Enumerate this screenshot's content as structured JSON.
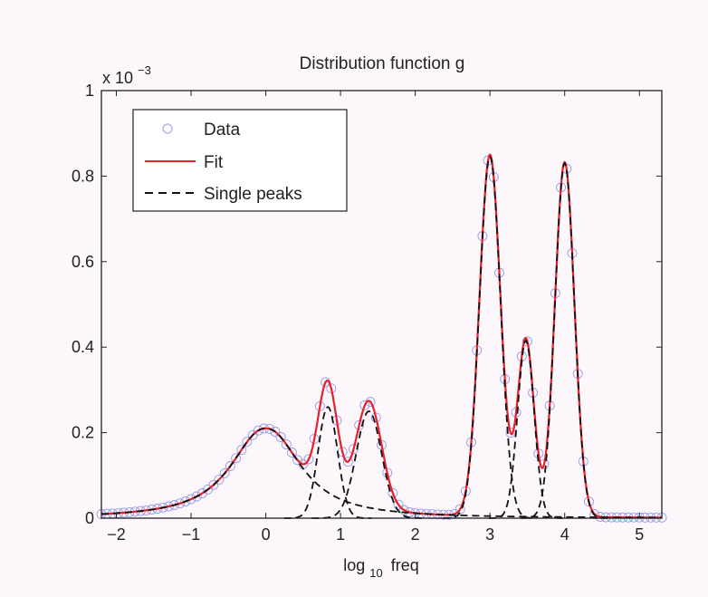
{
  "chart_data": {
    "type": "line",
    "title": "Distribution function g",
    "xlabel": "log",
    "xlabel_sub": "10",
    "xlabel_suffix": "freq",
    "ylabel": "",
    "y_multiplier": "x 10",
    "y_multiplier_exp": "−3",
    "xlim": [
      -2.2,
      5.3
    ],
    "ylim": [
      0,
      1
    ],
    "x_ticks": [
      -2,
      -1,
      0,
      1,
      2,
      3,
      4,
      5
    ],
    "x_tick_labels": [
      "−2",
      "−1",
      "0",
      "1",
      "2",
      "3",
      "4",
      "5"
    ],
    "y_ticks": [
      0,
      0.2,
      0.4,
      0.6,
      0.8,
      1
    ],
    "y_tick_labels": [
      "0",
      "0.2",
      "0.4",
      "0.6",
      "0.8",
      "1"
    ],
    "grid": false,
    "legend_position": "top-left",
    "legend": [
      {
        "label": "Data",
        "style": "circle-marker",
        "color": "#9a9ae6"
      },
      {
        "label": "Fit",
        "style": "solid-line",
        "color": "#e8202a"
      },
      {
        "label": "Single peaks",
        "style": "dashed-line",
        "color": "#111111"
      }
    ],
    "peaks": [
      {
        "center": 0.0,
        "height": 0.21,
        "width": 0.55,
        "shape": "broad"
      },
      {
        "center": 0.83,
        "height": 0.26,
        "width": 0.13,
        "shape": "gaussian"
      },
      {
        "center": 1.38,
        "height": 0.25,
        "width": 0.17,
        "shape": "gaussian"
      },
      {
        "center": 3.0,
        "height": 0.845,
        "width": 0.14,
        "shape": "gaussian"
      },
      {
        "center": 3.48,
        "height": 0.415,
        "width": 0.11,
        "shape": "gaussian"
      },
      {
        "center": 4.0,
        "height": 0.83,
        "width": 0.13,
        "shape": "gaussian"
      }
    ],
    "series": [
      {
        "name": "Data",
        "kind": "markers",
        "x_start": -2.2,
        "x_end": 5.3,
        "x_step": 0.075
      },
      {
        "name": "Fit",
        "kind": "line"
      },
      {
        "name": "Single peaks",
        "kind": "dashed"
      }
    ]
  }
}
